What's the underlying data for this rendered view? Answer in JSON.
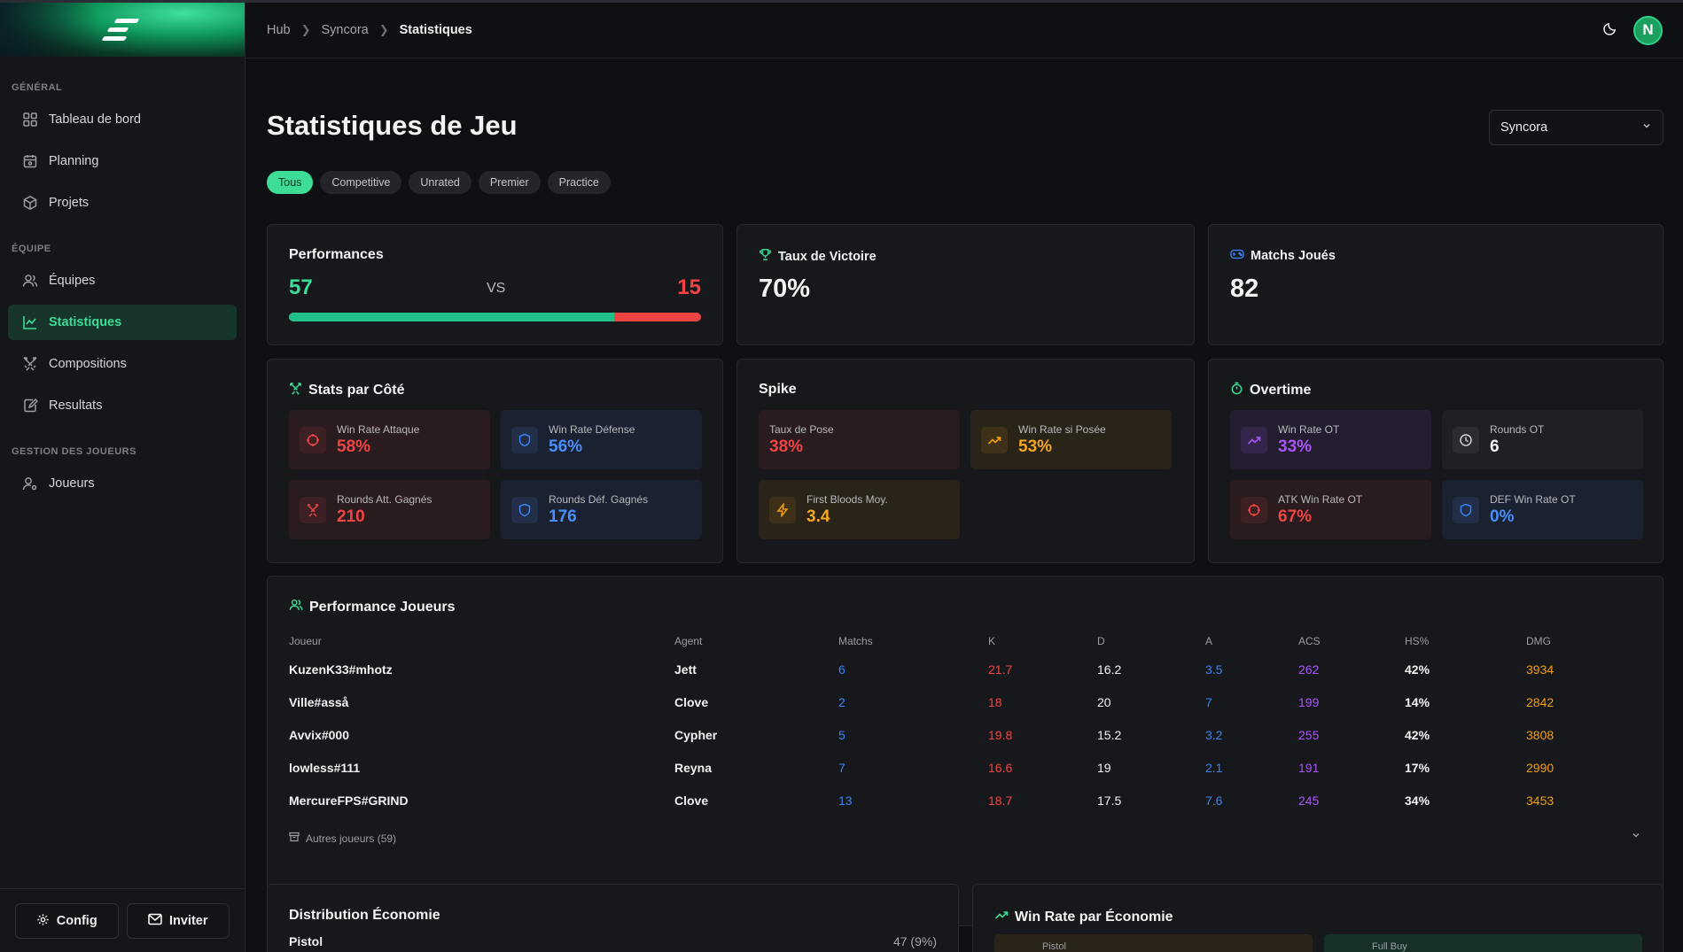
{
  "sidebar": {
    "sections": [
      {
        "title": "GÉNÉRAL",
        "items": [
          {
            "label": "Tableau de bord",
            "icon": "grid-icon"
          },
          {
            "label": "Planning",
            "icon": "calendar-icon"
          },
          {
            "label": "Projets",
            "icon": "box-icon"
          }
        ]
      },
      {
        "title": "ÉQUIPE",
        "items": [
          {
            "label": "Équipes",
            "icon": "users-icon"
          },
          {
            "label": "Statistiques",
            "icon": "chart-line-icon",
            "active": true
          },
          {
            "label": "Compositions",
            "icon": "swords-icon"
          },
          {
            "label": "Resultats",
            "icon": "clipboard-edit-icon"
          }
        ]
      },
      {
        "title": "GESTION DES JOUEURS",
        "items": [
          {
            "label": "Joueurs",
            "icon": "user-cog-icon"
          }
        ]
      }
    ],
    "footer": {
      "config": "Config",
      "invite": "Inviter"
    }
  },
  "breadcrumb": [
    "Hub",
    "Syncora",
    "Statistiques"
  ],
  "avatar_letter": "N",
  "page": {
    "title": "Statistiques de Jeu",
    "team_select": "Syncora",
    "filters": [
      "Tous",
      "Competitive",
      "Unrated",
      "Premier",
      "Practice"
    ],
    "active_filter": "Tous"
  },
  "performances": {
    "title": "Performances",
    "wins": "57",
    "vs": "VS",
    "losses": "15",
    "win_fraction": 0.79
  },
  "win_rate": {
    "title": "Taux de Victoire",
    "value": "70%"
  },
  "matches": {
    "title": "Matchs Joués",
    "value": "82"
  },
  "side_stats": {
    "title": "Stats par Côté",
    "tiles": [
      {
        "label": "Win Rate Attaque",
        "value": "58%",
        "color": "red",
        "icon": "crosshair-icon"
      },
      {
        "label": "Win Rate Défense",
        "value": "56%",
        "color": "blue",
        "icon": "shield-icon"
      },
      {
        "label": "Rounds Att. Gagnés",
        "value": "210",
        "color": "red",
        "icon": "swords-icon"
      },
      {
        "label": "Rounds Déf. Gagnés",
        "value": "176",
        "color": "blue",
        "icon": "shield-icon"
      }
    ]
  },
  "spike": {
    "title": "Spike",
    "tiles": [
      {
        "label": "Taux de Pose",
        "value": "38%",
        "color": "red",
        "icon": ""
      },
      {
        "label": "Win Rate si Posée",
        "value": "53%",
        "color": "amber",
        "icon": "trending-up-icon"
      },
      {
        "label": "First Bloods Moy.",
        "value": "3.4",
        "color": "amber",
        "icon": "zap-icon"
      }
    ]
  },
  "overtime": {
    "title": "Overtime",
    "tiles": [
      {
        "label": "Win Rate OT",
        "value": "33%",
        "color": "purple",
        "icon": "trending-up-icon"
      },
      {
        "label": "Rounds OT",
        "value": "6",
        "color": "gray",
        "icon": "clock-icon"
      },
      {
        "label": "ATK Win Rate OT",
        "value": "67%",
        "color": "red",
        "icon": "crosshair-icon"
      },
      {
        "label": "DEF Win Rate OT",
        "value": "0%",
        "color": "blue",
        "icon": "shield-icon"
      }
    ]
  },
  "players": {
    "title": "Performance Joueurs",
    "columns": [
      "Joueur",
      "Agent",
      "Matchs",
      "K",
      "D",
      "A",
      "ACS",
      "HS%",
      "DMG"
    ],
    "rows": [
      [
        "KuzenK33#mhotz",
        "Jett",
        "6",
        "21.7",
        "16.2",
        "3.5",
        "262",
        "42%",
        "3934"
      ],
      [
        "Ville#asså",
        "Clove",
        "2",
        "18",
        "20",
        "7",
        "199",
        "14%",
        "2842"
      ],
      [
        "Avvix#000",
        "Cypher",
        "5",
        "19.8",
        "15.2",
        "3.2",
        "255",
        "42%",
        "3808"
      ],
      [
        "lowless#111",
        "Reyna",
        "7",
        "16.6",
        "19",
        "2.1",
        "191",
        "17%",
        "2990"
      ],
      [
        "MercureFPS#GRIND",
        "Clove",
        "13",
        "18.7",
        "17.5",
        "7.6",
        "245",
        "34%",
        "3453"
      ]
    ],
    "more_label": "Autres joueurs (59)"
  },
  "economy": {
    "title": "Distribution Économie",
    "first_row_label": "Pistol",
    "first_row_value": "47 (9%)"
  },
  "eco_winrate": {
    "title": "Win Rate par Économie",
    "tiles": [
      "Pistol",
      "Full Buy"
    ]
  },
  "colors": {
    "accent": "#3ddc97",
    "red": "#ef4444",
    "blue": "#3b82f6",
    "amber": "#f59e0b",
    "purple": "#a855f7"
  }
}
